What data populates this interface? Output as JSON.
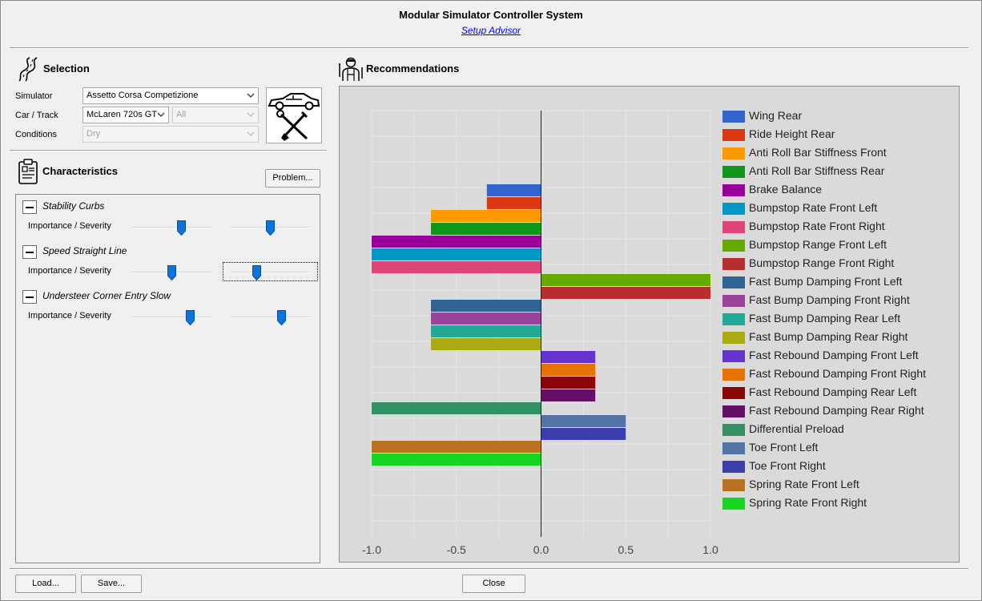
{
  "window": {
    "title": "Modular Simulator Controller System",
    "subtitle": "Setup Advisor"
  },
  "selection": {
    "title": "Selection",
    "simulator_label": "Simulator",
    "simulator_value": "Assetto Corsa Competizione",
    "car_track_label": "Car / Track",
    "car_value": "McLaren 720s GT",
    "track_value": "All",
    "conditions_label": "Conditions",
    "conditions_value": "Dry"
  },
  "characteristics": {
    "title": "Characteristics",
    "problem_button": "Problem...",
    "items": [
      {
        "name": "Stability Curbs",
        "importance_label": "Importance / Severity",
        "importance": 0.62,
        "severity": 0.5
      },
      {
        "name": "Speed Straight Line",
        "importance_label": "Importance / Severity",
        "importance": 0.5,
        "severity": 0.33
      },
      {
        "name": "Understeer Corner Entry Slow",
        "importance_label": "Importance / Severity",
        "importance": 0.73,
        "severity": 0.64
      }
    ]
  },
  "recommendations": {
    "title": "Recommendations"
  },
  "footer": {
    "load_button": "Load...",
    "save_button": "Save...",
    "close_button": "Close"
  },
  "chart_data": {
    "type": "bar",
    "orientation": "horizontal",
    "xlim": [
      -1.0,
      1.0
    ],
    "xticks": [
      "-1.0",
      "-0.5",
      "0.0",
      "0.5",
      "1.0"
    ],
    "grid": true,
    "legend_position": "right",
    "series": [
      {
        "name": "Wing Rear",
        "value": 0,
        "color": "#3366cc"
      },
      {
        "name": "Ride Height Rear",
        "value": 0,
        "color": "#dc3912"
      },
      {
        "name": "Anti Roll Bar Stiffness Front",
        "value": 0,
        "color": "#ff9900"
      },
      {
        "name": "Anti Roll Bar Stiffness Rear",
        "value": 0,
        "color": "#109618"
      },
      {
        "name": "Brake Balance",
        "value": 0,
        "color": "#990099"
      },
      {
        "name": "Bumpstop Rate Front Left",
        "value": 0,
        "color": "#0099c6"
      },
      {
        "name": "Bumpstop Rate Front Right",
        "value": 0,
        "color": "#dd4477"
      },
      {
        "name": "Bumpstop Range Front Left",
        "value": 0,
        "color": "#66aa00"
      },
      {
        "name": "Bumpstop Range Front Right",
        "value": 0,
        "color": "#b82e2e"
      },
      {
        "name": "Fast Bump Damping Front Left",
        "value": 0,
        "color": "#316395"
      },
      {
        "name": "Fast Bump Damping Front Right",
        "value": 0,
        "color": "#994499"
      },
      {
        "name": "Fast Bump Damping Rear Left",
        "value": 0,
        "color": "#22aa99"
      },
      {
        "name": "Fast Bump Damping Rear Right",
        "value": 0,
        "color": "#aaaa11"
      },
      {
        "name": "Fast Rebound Damping Front Left",
        "value": 0,
        "color": "#6633cc"
      },
      {
        "name": "Fast Rebound Damping Front Right",
        "value": 0,
        "color": "#e67300"
      },
      {
        "name": "Fast Rebound Damping Rear Left",
        "value": 0,
        "color": "#8b0707"
      },
      {
        "name": "Fast Rebound Damping Rear Right",
        "value": 0,
        "color": "#651067"
      },
      {
        "name": "Differential Preload",
        "value": 0,
        "color": "#329262"
      },
      {
        "name": "Toe Front Left",
        "value": 0,
        "color": "#5574a6"
      },
      {
        "name": "Toe Front Right",
        "value": 0,
        "color": "#3b3eac"
      },
      {
        "name": "Spring Rate Front Left",
        "value": 0,
        "color": "#b77322"
      },
      {
        "name": "Spring Rate Front Right",
        "value": 0,
        "color": "#16d620"
      }
    ],
    "bars": [
      {
        "series": "Wing Rear",
        "value": -0.32
      },
      {
        "series": "Ride Height Rear",
        "value": -0.32
      },
      {
        "series": "Anti Roll Bar Stiffness Front",
        "value": -0.65
      },
      {
        "series": "Anti Roll Bar Stiffness Rear",
        "value": -0.65
      },
      {
        "series": "Brake Balance",
        "value": -1.0
      },
      {
        "series": "Bumpstop Rate Front Left",
        "value": -1.0
      },
      {
        "series": "Bumpstop Rate Front Right",
        "value": -1.0
      },
      {
        "series": "Bumpstop Range Front Left",
        "value": 1.0
      },
      {
        "series": "Bumpstop Range Front Right",
        "value": 1.0
      },
      {
        "series": "Fast Bump Damping Front Left",
        "value": -0.65
      },
      {
        "series": "Fast Bump Damping Front Right",
        "value": -0.65
      },
      {
        "series": "Fast Bump Damping Rear Left",
        "value": -0.65
      },
      {
        "series": "Fast Bump Damping Rear Right",
        "value": -0.65
      },
      {
        "series": "Fast Rebound Damping Front Left",
        "value": 0.32
      },
      {
        "series": "Fast Rebound Damping Front Right",
        "value": 0.32
      },
      {
        "series": "Fast Rebound Damping Rear Left",
        "value": 0.32
      },
      {
        "series": "Fast Rebound Damping Rear Right",
        "value": 0.32
      },
      {
        "series": "Differential Preload",
        "value": -1.0
      },
      {
        "series": "Toe Front Left",
        "value": 0.5
      },
      {
        "series": "Toe Front Right",
        "value": 0.5
      },
      {
        "series": "Spring Rate Front Left",
        "value": -1.0
      },
      {
        "series": "Spring Rate Front Right",
        "value": -1.0
      }
    ]
  }
}
